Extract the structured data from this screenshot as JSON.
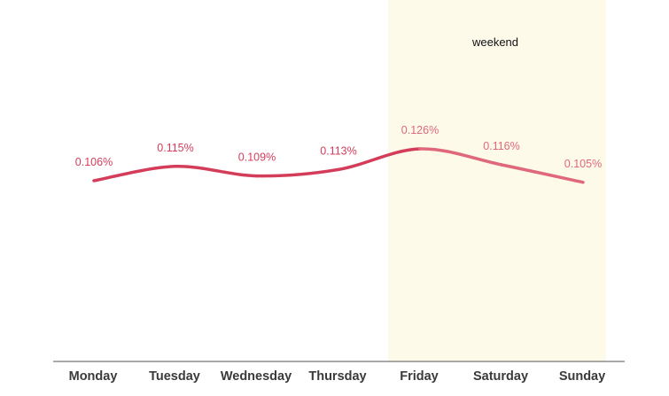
{
  "chart_data": {
    "type": "line",
    "categories": [
      "Monday",
      "Tuesday",
      "Wednesday",
      "Thursday",
      "Friday",
      "Saturday",
      "Sunday"
    ],
    "series": [
      {
        "values": [
          0.106,
          0.115,
          0.109,
          0.113,
          0.126,
          0.116,
          0.105
        ],
        "labels": [
          "0.106%",
          "0.115%",
          "0.109%",
          "0.113%",
          "0.126%",
          "0.116%",
          "0.105%"
        ]
      }
    ],
    "highlight": {
      "from": "Friday",
      "to": "Sunday",
      "label": "weekend",
      "color": "#fdfaea"
    },
    "line_color": "#d43d5a",
    "highlight_line_color": "#e0687c",
    "ylim": [
      0,
      0.25
    ],
    "grid": false,
    "title": "",
    "xlabel": "",
    "ylabel": ""
  }
}
